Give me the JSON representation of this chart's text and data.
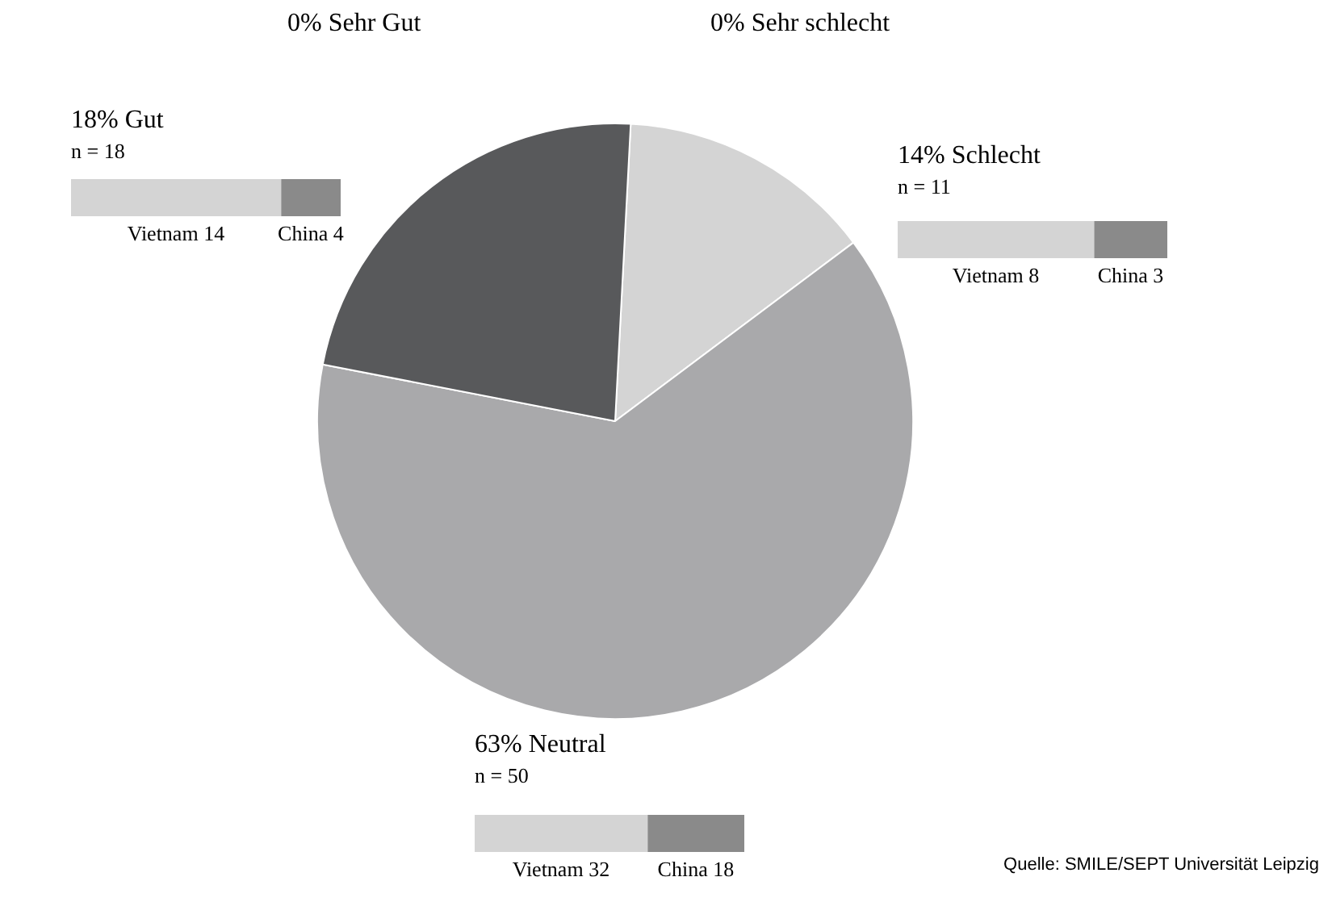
{
  "chart_data": [
    {
      "type": "pie",
      "categories": [
        "0% Sehr Gut",
        "0% Sehr schlecht",
        "14% Schlecht",
        "63% Neutral",
        "18% Gut"
      ],
      "values": [
        0,
        0,
        11,
        50,
        18
      ],
      "colors": [
        "#3a3a3c",
        "#e6e6e6",
        "#d4d4d4",
        "#a9a9ab",
        "#58595b"
      ],
      "value_labels": [
        null,
        null,
        "n = 11",
        "n = 50",
        "n = 18"
      ],
      "annotations": [
        "Quelle: SMILE/SEPT Universität Leipzig"
      ]
    },
    {
      "type": "bar",
      "orientation": "horizontal",
      "stacked": true,
      "categories": [
        null
      ],
      "series": [
        {
          "color": "#d4d4d4",
          "values": [
            14
          ],
          "value_labels": [
            "Vietnam 14"
          ]
        },
        {
          "color": "#8a8a8a",
          "values": [
            4
          ],
          "value_labels": [
            "China 4"
          ]
        }
      ]
    },
    {
      "type": "bar",
      "orientation": "horizontal",
      "stacked": true,
      "categories": [
        null
      ],
      "series": [
        {
          "color": "#d4d4d4",
          "values": [
            8
          ],
          "value_labels": [
            "Vietnam 8"
          ]
        },
        {
          "color": "#8a8a8a",
          "values": [
            3
          ],
          "value_labels": [
            "China 3"
          ]
        }
      ]
    },
    {
      "type": "bar",
      "orientation": "horizontal",
      "stacked": true,
      "categories": [
        null
      ],
      "series": [
        {
          "color": "#d4d4d4",
          "values": [
            32
          ],
          "value_labels": [
            "Vietnam 32"
          ]
        },
        {
          "color": "#8a8a8a",
          "values": [
            18
          ],
          "value_labels": [
            "China 18"
          ]
        }
      ]
    }
  ]
}
